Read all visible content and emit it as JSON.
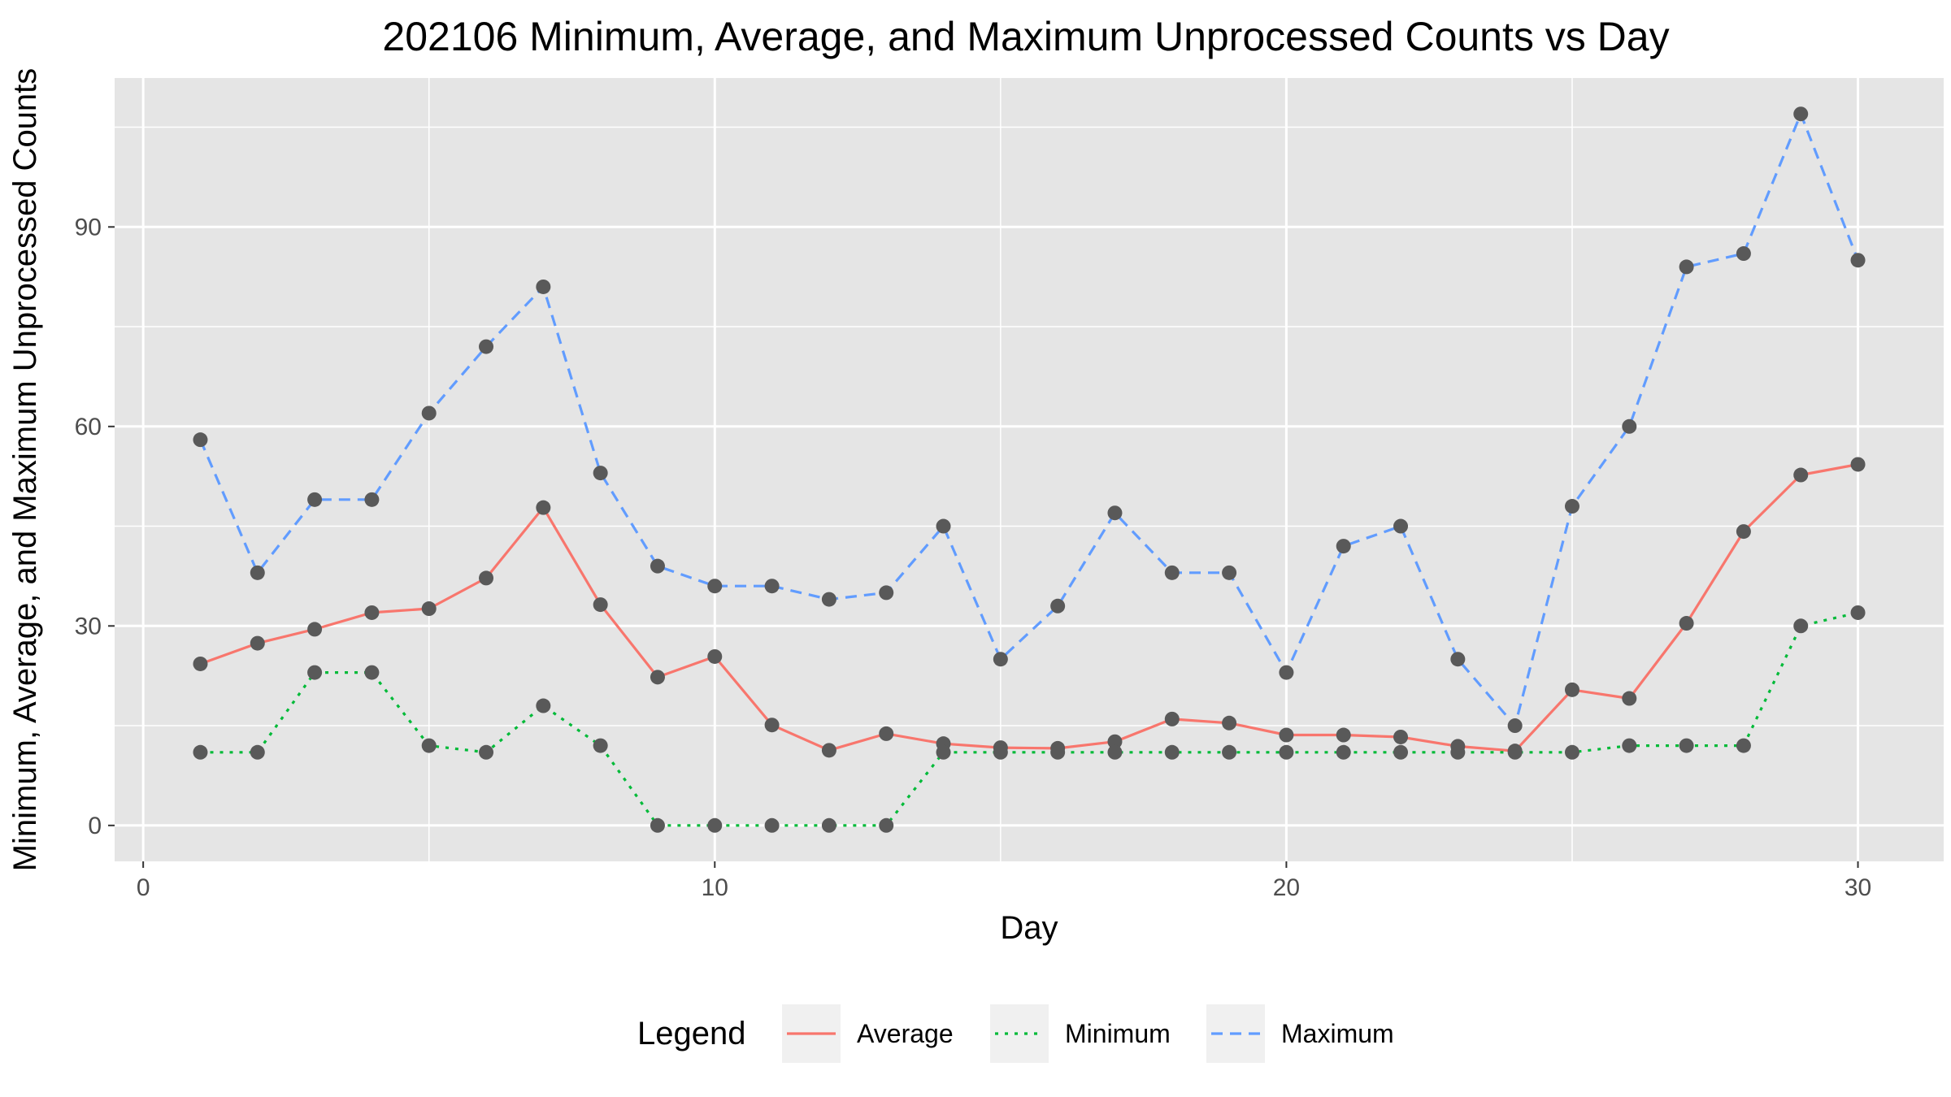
{
  "chart_data": {
    "type": "line",
    "title": "202106 Minimum, Average, and Maximum Unprocessed Counts vs Day",
    "xlabel": "Day",
    "ylabel": "Minimum, Average, and Maximum Unprocessed Counts",
    "xlim": [
      -0.5,
      31.5
    ],
    "ylim": [
      -5.4,
      112.4
    ],
    "x_ticks": [
      0,
      10,
      20,
      30
    ],
    "y_ticks": [
      0,
      30,
      60,
      90
    ],
    "x_tick_labels": [
      "0",
      "10",
      "20",
      "30"
    ],
    "y_tick_labels": [
      "0",
      "30",
      "60",
      "90"
    ],
    "grid": true,
    "legend_position": "bottom",
    "legend_title": "Legend",
    "x": [
      1,
      2,
      3,
      4,
      5,
      6,
      7,
      8,
      9,
      10,
      11,
      12,
      13,
      14,
      15,
      16,
      17,
      18,
      19,
      20,
      21,
      22,
      23,
      24,
      25,
      26,
      27,
      28,
      29,
      30
    ],
    "series": [
      {
        "name": "Average",
        "color": "#F8766D",
        "dash": "solid",
        "values": [
          24.3,
          27.4,
          29.5,
          32.0,
          32.6,
          37.2,
          47.8,
          33.2,
          22.3,
          25.4,
          15.1,
          11.3,
          13.8,
          12.3,
          11.7,
          11.6,
          12.6,
          16.0,
          15.4,
          13.6,
          13.6,
          13.3,
          11.9,
          11.2,
          20.4,
          19.1,
          30.4,
          44.2,
          52.7,
          54.3
        ]
      },
      {
        "name": "Minimum",
        "color": "#00BA38",
        "dash": "dotted",
        "values": [
          11,
          11,
          23,
          23,
          12,
          11,
          18,
          12,
          0,
          0,
          0,
          0,
          0,
          11,
          11,
          11,
          11,
          11,
          11,
          11,
          11,
          11,
          11,
          11,
          11,
          12,
          12,
          12,
          30,
          32
        ]
      },
      {
        "name": "Maximum",
        "color": "#619CFF",
        "dash": "dashed",
        "values": [
          58,
          38,
          49,
          49,
          62,
          72,
          81,
          53,
          39,
          36,
          36,
          34,
          35,
          45,
          25,
          33,
          47,
          38,
          38,
          23,
          42,
          45,
          25,
          15,
          48,
          60,
          84,
          86,
          107,
          85
        ]
      }
    ],
    "point_color": "#595959",
    "panel_background": "#E5E5E5",
    "grid_color": "#FFFFFF"
  }
}
